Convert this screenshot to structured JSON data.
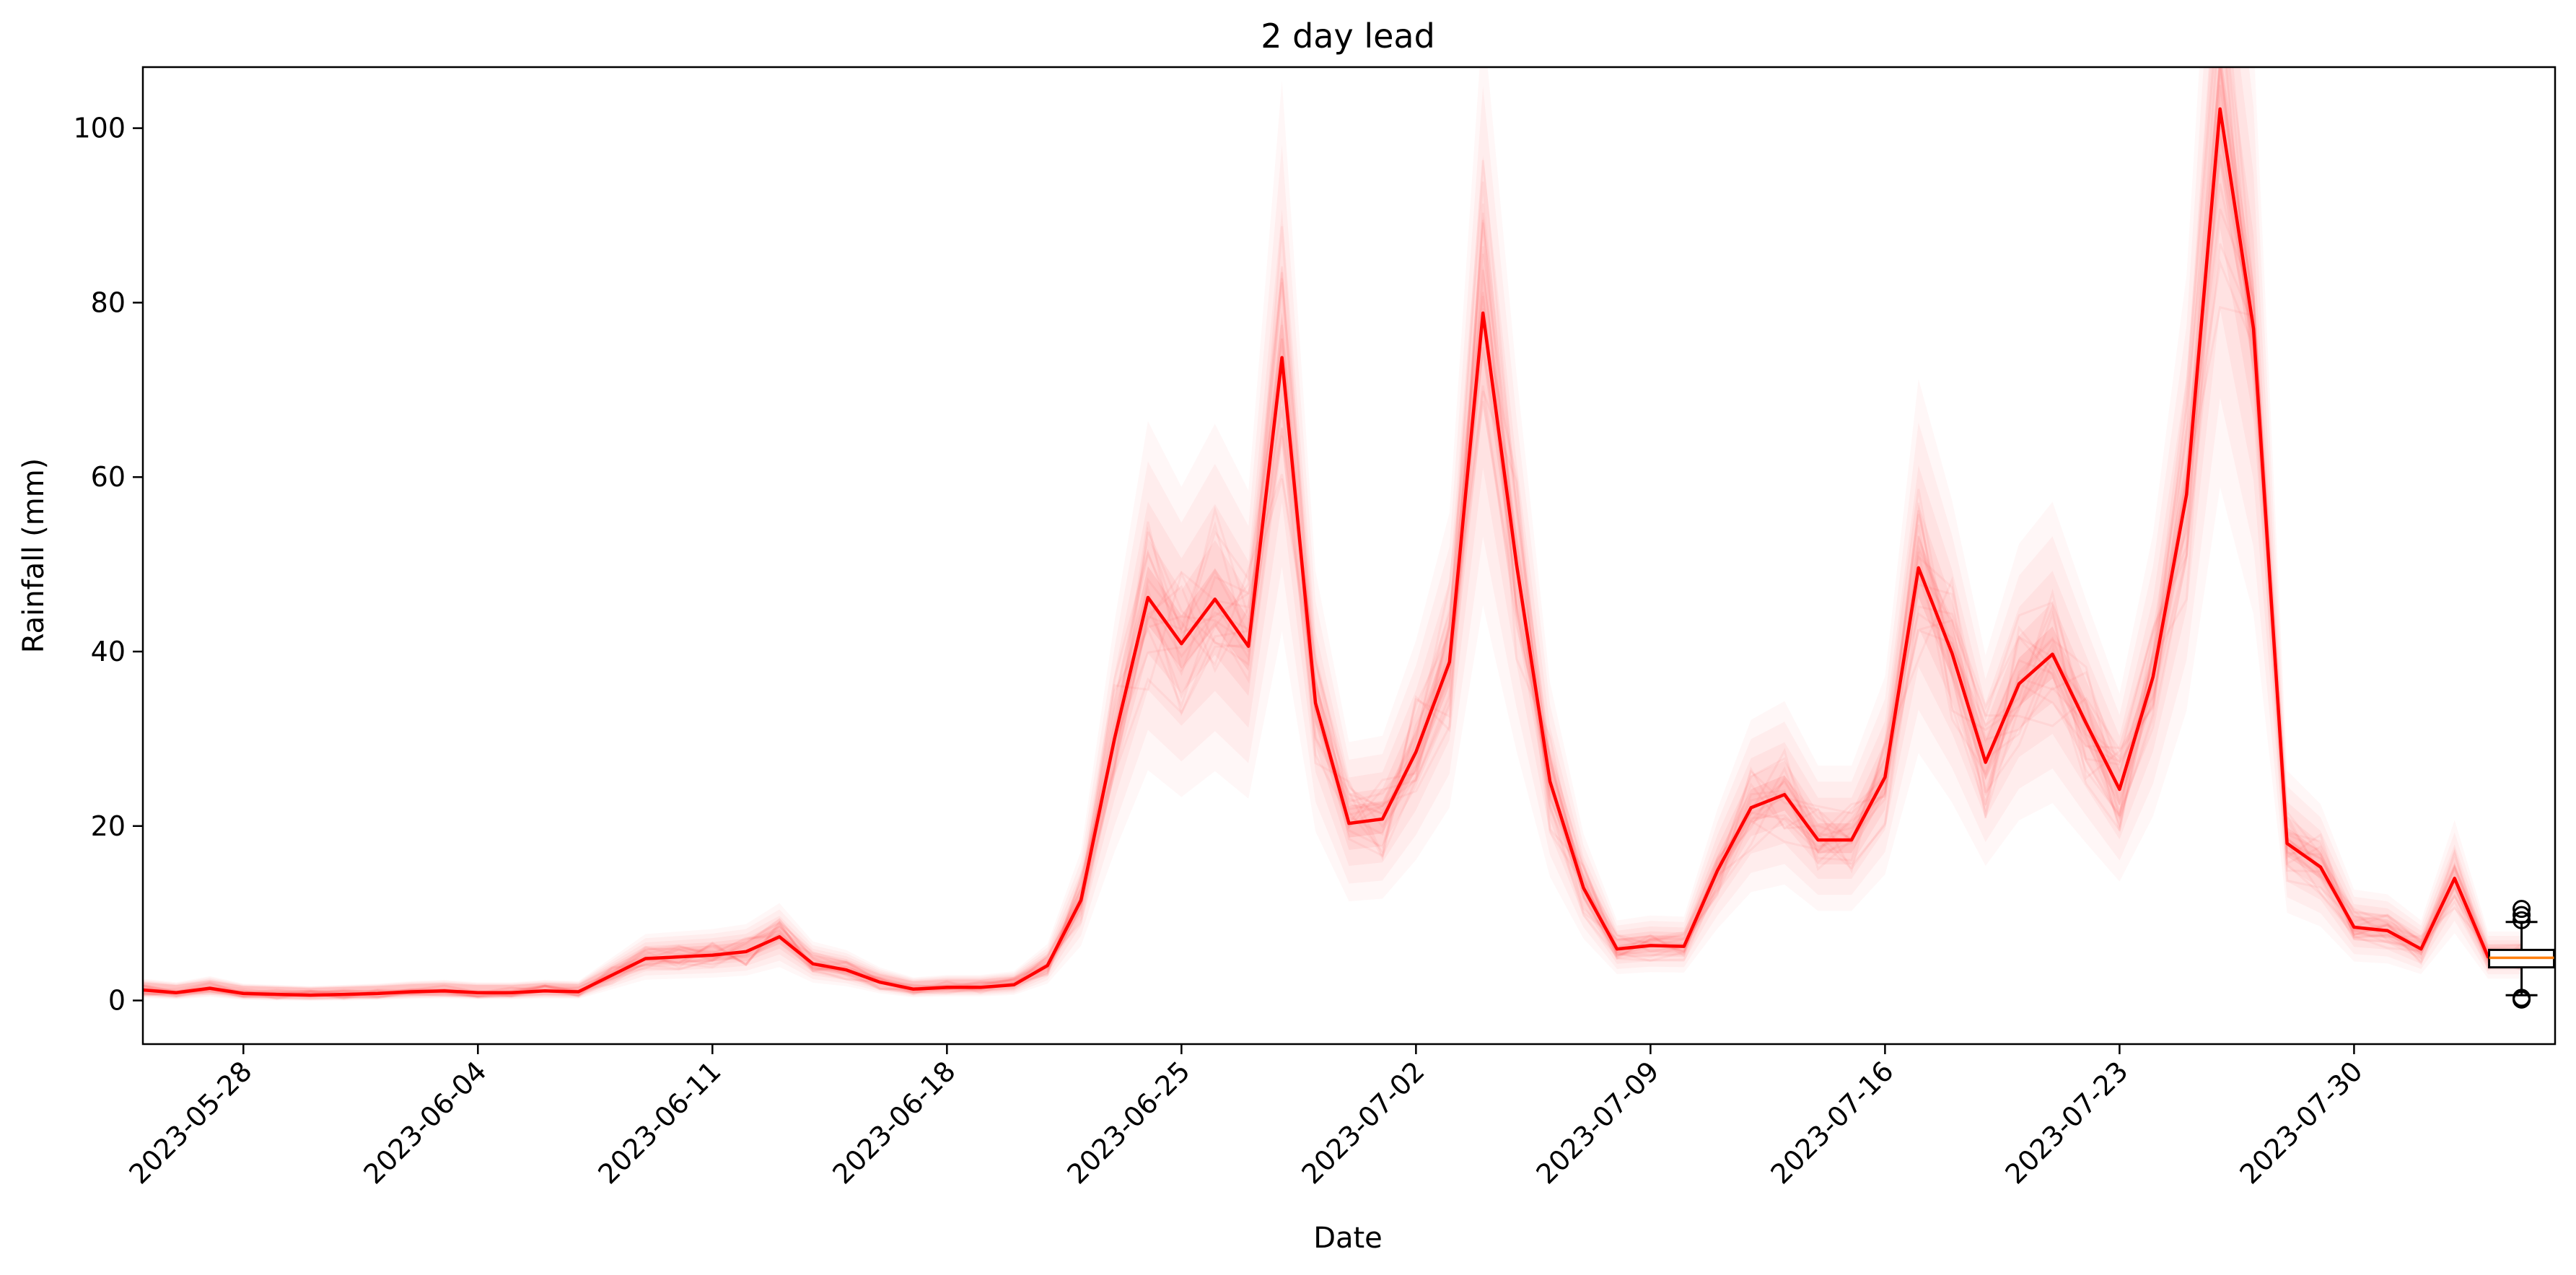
{
  "chart_data": {
    "type": "line",
    "title": "2 day lead",
    "xlabel": "Date",
    "ylabel": "Rainfall (mm)",
    "xlim": [
      "2023-05-25",
      "2023-08-05"
    ],
    "ylim": [
      -5,
      107
    ],
    "x_ticks": [
      "2023-05-28",
      "2023-06-04",
      "2023-06-11",
      "2023-06-18",
      "2023-06-25",
      "2023-07-02",
      "2023-07-09",
      "2023-07-16",
      "2023-07-23",
      "2023-07-30"
    ],
    "y_ticks": [
      0,
      20,
      40,
      60,
      80,
      100
    ],
    "grid": false,
    "colors": {
      "main_line": "#ff0000",
      "ensemble": "#ff3b3b",
      "box_median": "#ff7f0e",
      "box_edge": "#000000"
    },
    "series": [
      {
        "x": [
          "2023-05-25",
          "2023-05-26",
          "2023-05-27",
          "2023-05-28",
          "2023-05-29",
          "2023-05-30",
          "2023-05-31",
          "2023-06-01",
          "2023-06-02",
          "2023-06-03",
          "2023-06-04",
          "2023-06-05",
          "2023-06-06",
          "2023-06-07",
          "2023-06-08",
          "2023-06-09",
          "2023-06-10",
          "2023-06-11",
          "2023-06-12",
          "2023-06-13",
          "2023-06-14",
          "2023-06-15",
          "2023-06-16",
          "2023-06-17",
          "2023-06-18",
          "2023-06-19",
          "2023-06-20",
          "2023-06-21",
          "2023-06-22",
          "2023-06-23",
          "2023-06-24",
          "2023-06-25",
          "2023-06-26",
          "2023-06-27",
          "2023-06-28",
          "2023-06-29",
          "2023-06-30",
          "2023-07-01",
          "2023-07-02",
          "2023-07-03",
          "2023-07-04",
          "2023-07-05",
          "2023-07-06",
          "2023-07-07",
          "2023-07-08",
          "2023-07-09",
          "2023-07-10",
          "2023-07-11",
          "2023-07-12",
          "2023-07-13",
          "2023-07-14",
          "2023-07-15",
          "2023-07-16",
          "2023-07-17",
          "2023-07-18",
          "2023-07-19",
          "2023-07-20",
          "2023-07-21",
          "2023-07-22",
          "2023-07-23",
          "2023-07-24",
          "2023-07-25",
          "2023-07-26",
          "2023-07-27",
          "2023-07-28",
          "2023-07-29",
          "2023-07-30",
          "2023-07-31",
          "2023-08-01",
          "2023-08-02",
          "2023-08-03",
          "2023-08-04"
        ],
        "y": [
          1.2,
          0.9,
          1.4,
          0.8,
          0.7,
          0.6,
          0.7,
          0.8,
          1.0,
          1.1,
          0.9,
          0.9,
          1.1,
          1.0,
          2.9,
          4.8,
          5.0,
          5.2,
          5.6,
          7.3,
          4.2,
          3.5,
          2.1,
          1.3,
          1.5,
          1.5,
          1.8,
          4.0,
          11.5,
          30.0,
          46.2,
          40.9,
          46.0,
          40.6,
          73.7,
          34.1,
          20.3,
          20.8,
          28.5,
          38.8,
          78.8,
          50.0,
          25.1,
          12.9,
          5.9,
          6.3,
          6.2,
          14.9,
          22.1,
          23.6,
          18.4,
          18.4,
          25.6,
          49.6,
          39.8,
          27.3,
          36.3,
          39.7,
          31.8,
          24.2,
          37.1,
          58.0,
          102.2,
          77.0,
          18.0,
          15.3,
          8.4,
          8.0,
          5.9,
          14.0,
          5.0,
          5.0
        ]
      }
    ],
    "boxplot": {
      "position": "2023-08-04",
      "q1": 3.8,
      "median": 4.9,
      "q3": 5.8,
      "whisker_low": 0.6,
      "whisker_high": 9.0,
      "fliers": [
        0.1,
        0.3,
        9.2,
        9.8,
        10.5
      ]
    }
  }
}
